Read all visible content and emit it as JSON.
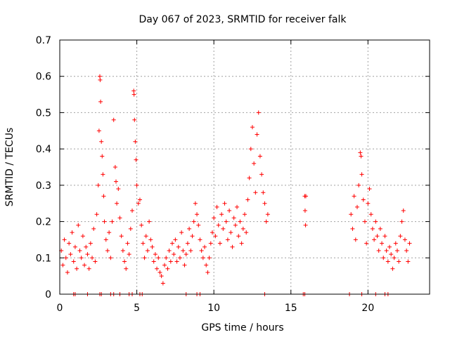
{
  "chart_data": {
    "type": "scatter",
    "title": "Day 067 of 2023, SRMTID for receiver falk",
    "xlabel": "GPS time / hours",
    "ylabel": "SRMTID / TECUs",
    "xlim": [
      0,
      24
    ],
    "ylim": [
      0,
      0.7
    ],
    "xticks": [
      0,
      5,
      10,
      15,
      20
    ],
    "yticks": [
      0,
      0.1,
      0.2,
      0.3,
      0.4,
      0.5,
      0.6,
      0.7
    ],
    "xtick_labels": [
      "0",
      "5",
      "10",
      "15",
      "20"
    ],
    "ytick_labels": [
      "0",
      "0.1",
      "0.2",
      "0.3",
      "0.4",
      "0.5",
      "0.6",
      "0.7"
    ],
    "grid": true,
    "marker": "+",
    "color": "#ff0000",
    "series": [
      {
        "name": "SRMTID",
        "points": [
          [
            0.1,
            0.12
          ],
          [
            0.2,
            0.08
          ],
          [
            0.3,
            0.15
          ],
          [
            0.4,
            0.1
          ],
          [
            0.5,
            0.06
          ],
          [
            0.6,
            0.14
          ],
          [
            0.7,
            0.11
          ],
          [
            0.8,
            0.17
          ],
          [
            0.9,
            0.09
          ],
          [
            1.0,
            0.13
          ],
          [
            1.1,
            0.07
          ],
          [
            1.2,
            0.19
          ],
          [
            1.3,
            0.12
          ],
          [
            1.4,
            0.1
          ],
          [
            1.5,
            0.16
          ],
          [
            1.6,
            0.08
          ],
          [
            1.7,
            0.13
          ],
          [
            1.8,
            0.11
          ],
          [
            1.9,
            0.07
          ],
          [
            2.0,
            0.14
          ],
          [
            2.1,
            0.1
          ],
          [
            2.2,
            0.18
          ],
          [
            2.3,
            0.09
          ],
          [
            2.4,
            0.22
          ],
          [
            2.5,
            0.3
          ],
          [
            2.55,
            0.45
          ],
          [
            2.6,
            0.6
          ],
          [
            2.62,
            0.59
          ],
          [
            2.65,
            0.53
          ],
          [
            2.7,
            0.42
          ],
          [
            2.75,
            0.38
          ],
          [
            2.8,
            0.33
          ],
          [
            2.85,
            0.27
          ],
          [
            2.9,
            0.2
          ],
          [
            3.0,
            0.15
          ],
          [
            3.1,
            0.12
          ],
          [
            3.2,
            0.17
          ],
          [
            3.3,
            0.1
          ],
          [
            3.4,
            0.2
          ],
          [
            3.5,
            0.48
          ],
          [
            3.6,
            0.35
          ],
          [
            3.65,
            0.31
          ],
          [
            3.7,
            0.25
          ],
          [
            3.8,
            0.29
          ],
          [
            3.9,
            0.21
          ],
          [
            4.0,
            0.16
          ],
          [
            4.1,
            0.12
          ],
          [
            4.2,
            0.09
          ],
          [
            4.3,
            0.07
          ],
          [
            4.4,
            0.14
          ],
          [
            4.5,
            0.11
          ],
          [
            4.6,
            0.18
          ],
          [
            4.7,
            0.23
          ],
          [
            4.8,
            0.56
          ],
          [
            4.82,
            0.55
          ],
          [
            4.85,
            0.48
          ],
          [
            4.9,
            0.42
          ],
          [
            4.95,
            0.37
          ],
          [
            5.0,
            0.3
          ],
          [
            5.1,
            0.25
          ],
          [
            5.2,
            0.26
          ],
          [
            5.3,
            0.19
          ],
          [
            5.4,
            0.14
          ],
          [
            5.5,
            0.1
          ],
          [
            5.6,
            0.16
          ],
          [
            5.7,
            0.12
          ],
          [
            5.8,
            0.2
          ],
          [
            5.9,
            0.15
          ],
          [
            6.0,
            0.13
          ],
          [
            6.1,
            0.09
          ],
          [
            6.2,
            0.11
          ],
          [
            6.3,
            0.07
          ],
          [
            6.4,
            0.1
          ],
          [
            6.5,
            0.06
          ],
          [
            6.6,
            0.05
          ],
          [
            6.7,
            0.03
          ],
          [
            6.8,
            0.08
          ],
          [
            6.9,
            0.1
          ],
          [
            7.0,
            0.07
          ],
          [
            7.1,
            0.12
          ],
          [
            7.2,
            0.09
          ],
          [
            7.3,
            0.14
          ],
          [
            7.4,
            0.11
          ],
          [
            7.5,
            0.15
          ],
          [
            7.6,
            0.09
          ],
          [
            7.7,
            0.13
          ],
          [
            7.8,
            0.1
          ],
          [
            7.9,
            0.17
          ],
          [
            8.0,
            0.12
          ],
          [
            8.1,
            0.08
          ],
          [
            8.2,
            0.11
          ],
          [
            8.3,
            0.14
          ],
          [
            8.4,
            0.18
          ],
          [
            8.5,
            0.12
          ],
          [
            8.6,
            0.16
          ],
          [
            8.7,
            0.2
          ],
          [
            8.8,
            0.25
          ],
          [
            8.9,
            0.22
          ],
          [
            9.0,
            0.19
          ],
          [
            9.1,
            0.15
          ],
          [
            9.2,
            0.12
          ],
          [
            9.3,
            0.1
          ],
          [
            9.4,
            0.13
          ],
          [
            9.5,
            0.08
          ],
          [
            9.6,
            0.06
          ],
          [
            9.7,
            0.1
          ],
          [
            9.8,
            0.14
          ],
          [
            9.9,
            0.17
          ],
          [
            10.0,
            0.21
          ],
          [
            10.1,
            0.16
          ],
          [
            10.2,
            0.24
          ],
          [
            10.3,
            0.19
          ],
          [
            10.4,
            0.14
          ],
          [
            10.5,
            0.22
          ],
          [
            10.6,
            0.18
          ],
          [
            10.7,
            0.25
          ],
          [
            10.8,
            0.2
          ],
          [
            10.9,
            0.15
          ],
          [
            11.0,
            0.23
          ],
          [
            11.1,
            0.17
          ],
          [
            11.2,
            0.13
          ],
          [
            11.3,
            0.21
          ],
          [
            11.4,
            0.19
          ],
          [
            11.5,
            0.24
          ],
          [
            11.6,
            0.16
          ],
          [
            11.7,
            0.2
          ],
          [
            11.8,
            0.14
          ],
          [
            11.9,
            0.18
          ],
          [
            12.0,
            0.22
          ],
          [
            12.1,
            0.17
          ],
          [
            12.2,
            0.26
          ],
          [
            12.3,
            0.32
          ],
          [
            12.4,
            0.4
          ],
          [
            12.5,
            0.46
          ],
          [
            12.6,
            0.36
          ],
          [
            12.7,
            0.28
          ],
          [
            12.8,
            0.44
          ],
          [
            12.9,
            0.5
          ],
          [
            13.0,
            0.38
          ],
          [
            13.1,
            0.33
          ],
          [
            13.2,
            0.28
          ],
          [
            13.3,
            0.25
          ],
          [
            13.4,
            0.2
          ],
          [
            13.5,
            0.22
          ],
          [
            15.9,
            0.27
          ],
          [
            15.92,
            0.23
          ],
          [
            15.95,
            0.19
          ],
          [
            15.97,
            0.27
          ],
          [
            18.9,
            0.22
          ],
          [
            19.0,
            0.18
          ],
          [
            19.1,
            0.27
          ],
          [
            19.2,
            0.15
          ],
          [
            19.3,
            0.24
          ],
          [
            19.4,
            0.3
          ],
          [
            19.5,
            0.39
          ],
          [
            19.55,
            0.38
          ],
          [
            19.6,
            0.33
          ],
          [
            19.7,
            0.26
          ],
          [
            19.8,
            0.2
          ],
          [
            19.9,
            0.14
          ],
          [
            20.0,
            0.25
          ],
          [
            20.1,
            0.29
          ],
          [
            20.2,
            0.22
          ],
          [
            20.3,
            0.18
          ],
          [
            20.4,
            0.15
          ],
          [
            20.5,
            0.2
          ],
          [
            20.6,
            0.16
          ],
          [
            20.7,
            0.12
          ],
          [
            20.8,
            0.18
          ],
          [
            20.9,
            0.14
          ],
          [
            21.0,
            0.1
          ],
          [
            21.1,
            0.16
          ],
          [
            21.2,
            0.12
          ],
          [
            21.3,
            0.09
          ],
          [
            21.4,
            0.13
          ],
          [
            21.5,
            0.11
          ],
          [
            21.6,
            0.07
          ],
          [
            21.7,
            0.1
          ],
          [
            21.8,
            0.14
          ],
          [
            21.9,
            0.12
          ],
          [
            22.0,
            0.09
          ],
          [
            22.1,
            0.16
          ],
          [
            22.2,
            0.2
          ],
          [
            22.3,
            0.23
          ],
          [
            22.4,
            0.15
          ],
          [
            22.5,
            0.12
          ],
          [
            22.6,
            0.09
          ],
          [
            22.7,
            0.14
          ],
          [
            0.9,
            0.0
          ],
          [
            1.0,
            0.0
          ],
          [
            1.8,
            0.0
          ],
          [
            2.6,
            0.0
          ],
          [
            2.7,
            0.0
          ],
          [
            3.3,
            0.0
          ],
          [
            3.5,
            0.0
          ],
          [
            3.9,
            0.0
          ],
          [
            4.5,
            0.0
          ],
          [
            4.7,
            0.0
          ],
          [
            5.2,
            0.0
          ],
          [
            5.35,
            0.0
          ],
          [
            8.2,
            0.0
          ],
          [
            8.9,
            0.0
          ],
          [
            9.1,
            0.0
          ],
          [
            13.3,
            0.0
          ],
          [
            15.8,
            0.0
          ],
          [
            15.9,
            0.0
          ],
          [
            18.8,
            0.0
          ],
          [
            19.6,
            0.0
          ],
          [
            20.5,
            0.0
          ],
          [
            21.1,
            0.0
          ],
          [
            21.3,
            0.0
          ]
        ]
      }
    ]
  }
}
